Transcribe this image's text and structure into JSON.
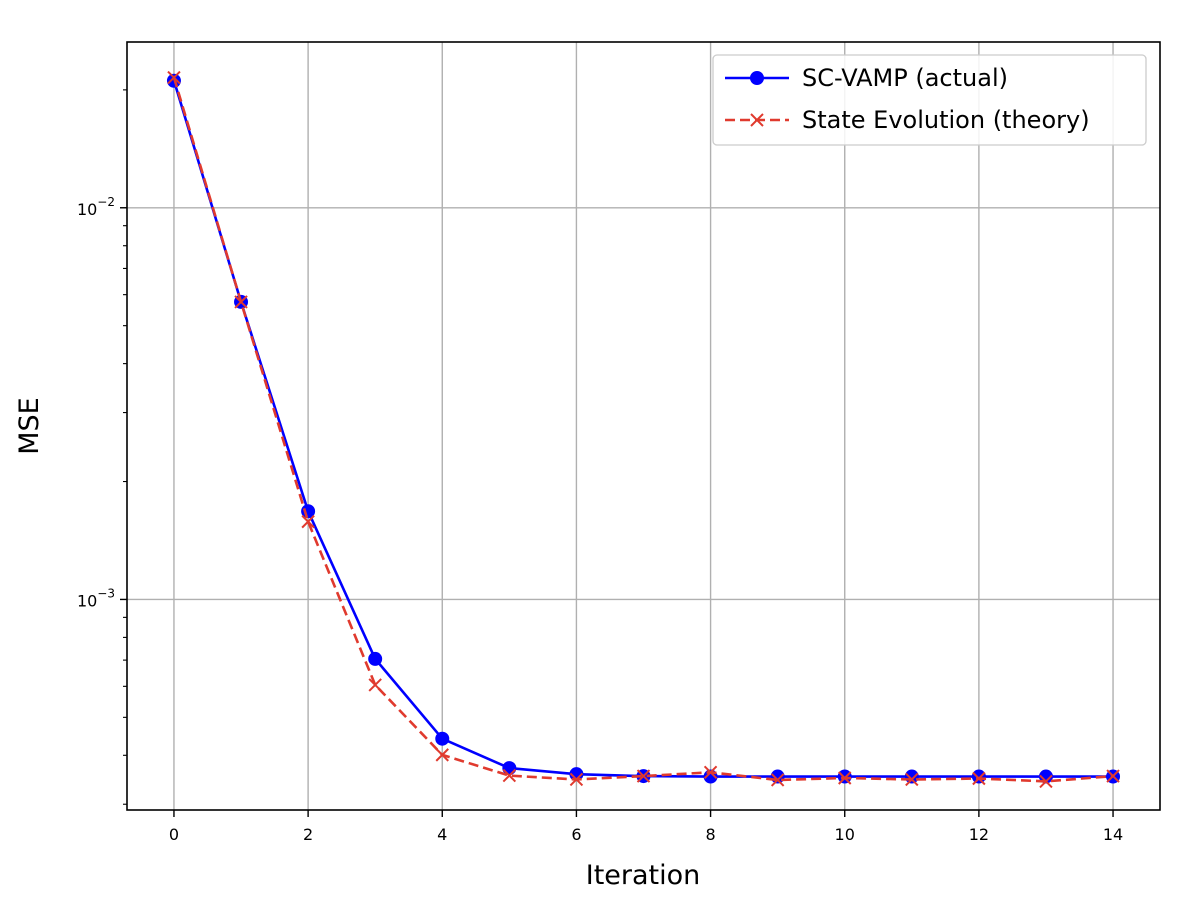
{
  "chart_data": {
    "type": "line",
    "xlabel": "Iteration",
    "ylabel": "MSE",
    "y_scale": "log",
    "xlim": [
      -0.7,
      14.7
    ],
    "ylim": [
      0.00029,
      0.0265
    ],
    "x_ticks": [
      0,
      2,
      4,
      6,
      8,
      10,
      12,
      14
    ],
    "y_major_ticks": [
      0.001,
      0.01
    ],
    "y_major_tick_labels": [
      {
        "base": "10",
        "exp": "−3"
      },
      {
        "base": "10",
        "exp": "−2"
      }
    ],
    "y_minor_ticks": [
      0.0003,
      0.0004,
      0.0005,
      0.0006,
      0.0007,
      0.0008,
      0.0009,
      0.002,
      0.003,
      0.004,
      0.005,
      0.006,
      0.007,
      0.008,
      0.009,
      0.02
    ],
    "grid": true,
    "legend_position": "top-right",
    "x": [
      0,
      1,
      2,
      3,
      4,
      5,
      6,
      7,
      8,
      9,
      10,
      11,
      12,
      13,
      14
    ],
    "series": [
      {
        "name": "SC-VAMP (actual)",
        "color": "#0000ff",
        "line_style": "solid",
        "marker": "circle",
        "values": [
          0.0211,
          0.00575,
          0.00168,
          0.000705,
          0.000441,
          0.000371,
          0.000358,
          0.000354,
          0.000353,
          0.000353,
          0.000353,
          0.000353,
          0.000353,
          0.000353,
          0.000353
        ]
      },
      {
        "name": "State Evolution (theory)",
        "color": "#e03a2e",
        "line_style": "dashed",
        "marker": "x",
        "values": [
          0.0215,
          0.00575,
          0.00158,
          0.000605,
          0.000401,
          0.000355,
          0.000347,
          0.000354,
          0.000362,
          0.000346,
          0.00035,
          0.000347,
          0.000349,
          0.000343,
          0.000354
        ]
      }
    ]
  }
}
